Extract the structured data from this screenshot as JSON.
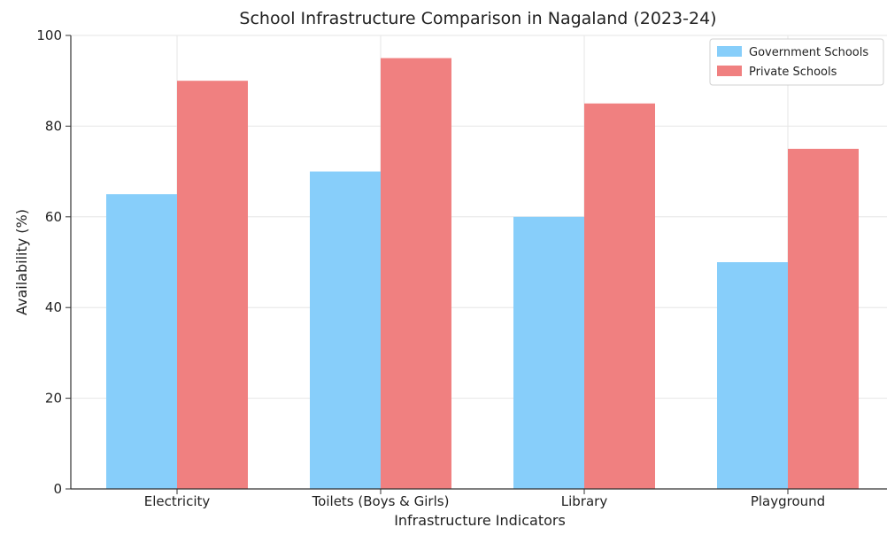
{
  "chart_data": {
    "type": "bar",
    "title": "School Infrastructure Comparison in Nagaland (2023-24)",
    "xlabel": "Infrastructure Indicators",
    "ylabel": "Availability (%)",
    "categories": [
      "Electricity",
      "Toilets (Boys & Girls)",
      "Library",
      "Playground"
    ],
    "series": [
      {
        "name": "Government Schools",
        "values": [
          65,
          70,
          60,
          50
        ],
        "color": "#87CEFA"
      },
      {
        "name": "Private Schools",
        "values": [
          90,
          95,
          85,
          75
        ],
        "color": "#F08080"
      }
    ],
    "ylim": [
      0,
      100
    ],
    "yticks": [
      "0",
      "20",
      "40",
      "60",
      "80",
      "100"
    ],
    "grid": true,
    "legend_position": "top-right"
  }
}
